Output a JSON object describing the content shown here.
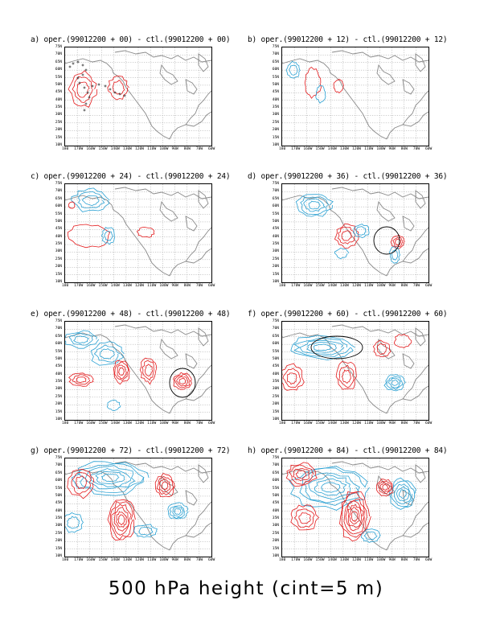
{
  "panels": [
    {
      "id": "a",
      "title": "a) oper.(99012200 + 00) - ctl.(99012200 + 00)",
      "lead": 0
    },
    {
      "id": "b",
      "title": "b) oper.(99012200 + 12) - ctl.(99012200 + 12)",
      "lead": 12
    },
    {
      "id": "c",
      "title": "c) oper.(99012200 + 24) - ctl.(99012200 + 24)",
      "lead": 24
    },
    {
      "id": "d",
      "title": "d) oper.(99012200 + 36) - ctl.(99012200 + 36)",
      "lead": 36
    },
    {
      "id": "e",
      "title": "e) oper.(99012200 + 48) - ctl.(99012200 + 48)",
      "lead": 48
    },
    {
      "id": "f",
      "title": "f) oper.(99012200 + 60) - ctl.(99012200 + 60)",
      "lead": 60
    },
    {
      "id": "g",
      "title": "g) oper.(99012200 + 72) - ctl.(99012200 + 72)",
      "lead": 72
    },
    {
      "id": "h",
      "title": "h) oper.(99012200 + 84) - ctl.(99012200 + 84)",
      "lead": 84
    }
  ],
  "lat_labels": [
    "75N",
    "70N",
    "65N",
    "60N",
    "55N",
    "50N",
    "45N",
    "40N",
    "35N",
    "30N",
    "25N",
    "20N",
    "15N",
    "10N"
  ],
  "lon_labels": [
    "180",
    "170W",
    "160W",
    "150W",
    "140W",
    "130W",
    "120W",
    "110W",
    "100W",
    "90W",
    "80W",
    "70W",
    "60W"
  ],
  "footer": "500 hPa height (cint=5 m)",
  "colors": {
    "positive": "#e41a1c",
    "negative": "#2aa1d3",
    "coast": "#8a8a8a",
    "grid": "#9a9a9a",
    "marker_circle": "#000000",
    "track": "#000000"
  }
}
